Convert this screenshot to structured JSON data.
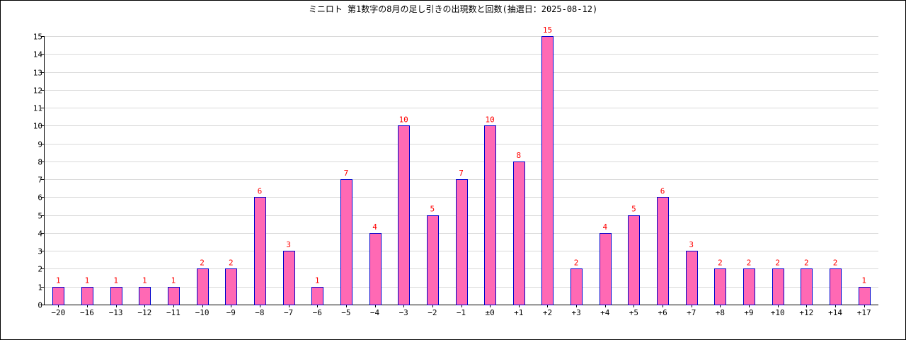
{
  "chart_data": {
    "type": "bar",
    "title": "ミニロト 第1数字の8月の足し引きの出現数と回数(抽選日：2025-08-12)",
    "xlabel": "",
    "ylabel": "",
    "categories": [
      "−20",
      "−16",
      "−13",
      "−12",
      "−11",
      "−10",
      "−9",
      "−8",
      "−7",
      "−6",
      "−5",
      "−4",
      "−3",
      "−2",
      "−1",
      "±0",
      "+1",
      "+2",
      "+3",
      "+4",
      "+5",
      "+6",
      "+7",
      "+8",
      "+9",
      "+10",
      "+12",
      "+14",
      "+17"
    ],
    "values": [
      1,
      1,
      1,
      1,
      1,
      2,
      2,
      6,
      3,
      1,
      7,
      4,
      10,
      5,
      7,
      10,
      8,
      15,
      2,
      4,
      5,
      6,
      3,
      2,
      2,
      2,
      2,
      2,
      1
    ],
    "ylim": [
      0,
      15
    ],
    "yticks": [
      0,
      1,
      2,
      3,
      4,
      5,
      6,
      7,
      8,
      9,
      10,
      11,
      12,
      13,
      14,
      15
    ],
    "grid": true,
    "legend": "none",
    "colors": {
      "bar_fill": "#ff69b4",
      "bar_stroke": "#0000cc",
      "data_label": "#ff0000",
      "grid": "#d9d9d9",
      "axis": "#000000"
    }
  }
}
